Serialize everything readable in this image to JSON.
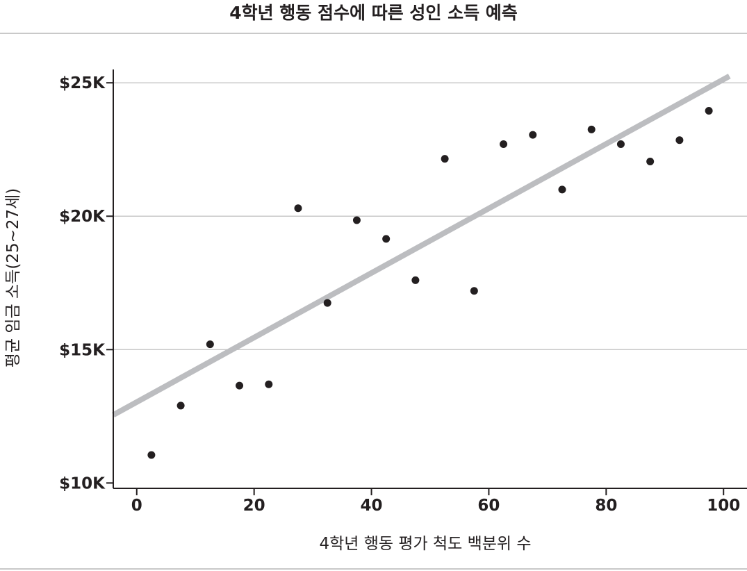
{
  "chart_data": {
    "type": "scatter",
    "title": "4학년 행동 점수에 따른 성인 소득 예측",
    "xlabel": "4학년 행동 평가 척도 백분위 수",
    "ylabel": "평균 임금 소득(25~27세)",
    "xlim": [
      -4,
      104
    ],
    "ylim": [
      9800,
      25500
    ],
    "x_ticks": [
      0,
      20,
      40,
      60,
      80,
      100
    ],
    "x_tick_labels": [
      "0",
      "20",
      "40",
      "60",
      "80",
      "100"
    ],
    "y_ticks": [
      10000,
      15000,
      20000,
      25000
    ],
    "y_tick_labels": [
      "$10K",
      "$15K",
      "$20K",
      "$25K"
    ],
    "grid": "horizontal",
    "points": [
      {
        "x": 2.5,
        "y": 11050
      },
      {
        "x": 7.5,
        "y": 12900
      },
      {
        "x": 12.5,
        "y": 15200
      },
      {
        "x": 17.5,
        "y": 13650
      },
      {
        "x": 22.5,
        "y": 13700
      },
      {
        "x": 27.5,
        "y": 20300
      },
      {
        "x": 32.5,
        "y": 16750
      },
      {
        "x": 37.5,
        "y": 19850
      },
      {
        "x": 42.5,
        "y": 19150
      },
      {
        "x": 47.5,
        "y": 17600
      },
      {
        "x": 52.5,
        "y": 22150
      },
      {
        "x": 57.5,
        "y": 17200
      },
      {
        "x": 62.5,
        "y": 22700
      },
      {
        "x": 67.5,
        "y": 23050
      },
      {
        "x": 72.5,
        "y": 21000
      },
      {
        "x": 77.5,
        "y": 23250
      },
      {
        "x": 82.5,
        "y": 22700
      },
      {
        "x": 87.5,
        "y": 22050
      },
      {
        "x": 92.5,
        "y": 22850
      },
      {
        "x": 97.5,
        "y": 23950
      }
    ],
    "trendline": {
      "x": [
        -4,
        101
      ],
      "y": [
        12550,
        25250
      ]
    },
    "colors": {
      "points": "#231f20",
      "trendline": "#bcbdc0",
      "grid": "#c9c9c9",
      "axis": "#231f20"
    }
  }
}
